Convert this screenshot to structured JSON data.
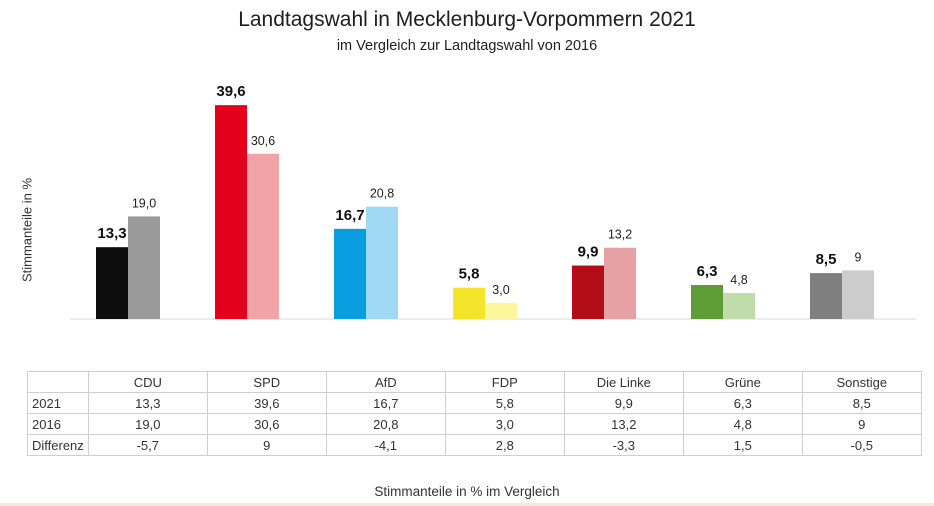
{
  "title": "Landtagswahl in Mecklenburg-Vorpommern 2021",
  "subtitle": "im Vergleich zur Landtagswahl von 2016",
  "caption": "Stimmanteile in % im Vergleich",
  "chart_data": {
    "type": "bar",
    "title": "Landtagswahl in Mecklenburg-Vorpommern 2021",
    "subtitle": "im Vergleich zur Landtagswahl von 2016",
    "ylabel": "Stimmanteile in %",
    "xlabel": "Stimmanteile in % im Vergleich",
    "ylim": [
      0,
      40
    ],
    "grid": false,
    "categories": [
      "CDU",
      "SPD",
      "AfD",
      "FDP",
      "Die Linke",
      "Grüne",
      "Sonstige"
    ],
    "series": [
      {
        "name": "2021",
        "values": [
          13.3,
          39.6,
          16.7,
          5.8,
          9.9,
          6.3,
          8.5
        ],
        "labels": [
          "13,3",
          "39,6",
          "16,7",
          "5,8",
          "9,9",
          "6,3",
          "8,5"
        ],
        "colors": [
          "#0d0d0d",
          "#e2001a",
          "#0a9de0",
          "#f5e52a",
          "#b50d18",
          "#5e9c36",
          "#7f7f7f"
        ]
      },
      {
        "name": "2016",
        "values": [
          19.0,
          30.6,
          20.8,
          3.0,
          13.2,
          4.8,
          9
        ],
        "labels": [
          "19,0",
          "30,6",
          "20,8",
          "3,0",
          "13,2",
          "4,8",
          "9"
        ],
        "colors": [
          "#9a9a9a",
          "#f1a3a8",
          "#9fd9f4",
          "#fbf59b",
          "#e6a1a5",
          "#bfdcaa",
          "#cccccc"
        ]
      }
    ],
    "table": {
      "headers": [
        "CDU",
        "SPD",
        "AfD",
        "FDP",
        "Die Linke",
        "Grüne",
        "Sonstige"
      ],
      "rows": [
        {
          "label": "2021",
          "values": [
            "13,3",
            "39,6",
            "16,7",
            "5,8",
            "9,9",
            "6,3",
            "8,5"
          ]
        },
        {
          "label": "2016",
          "values": [
            "19,0",
            "30,6",
            "20,8",
            "3,0",
            "13,2",
            "4,8",
            "9"
          ]
        },
        {
          "label": "Differenz",
          "values": [
            "-5,7",
            "9",
            "-4,1",
            "2,8",
            "-3,3",
            "1,5",
            "-0,5"
          ]
        }
      ]
    }
  }
}
